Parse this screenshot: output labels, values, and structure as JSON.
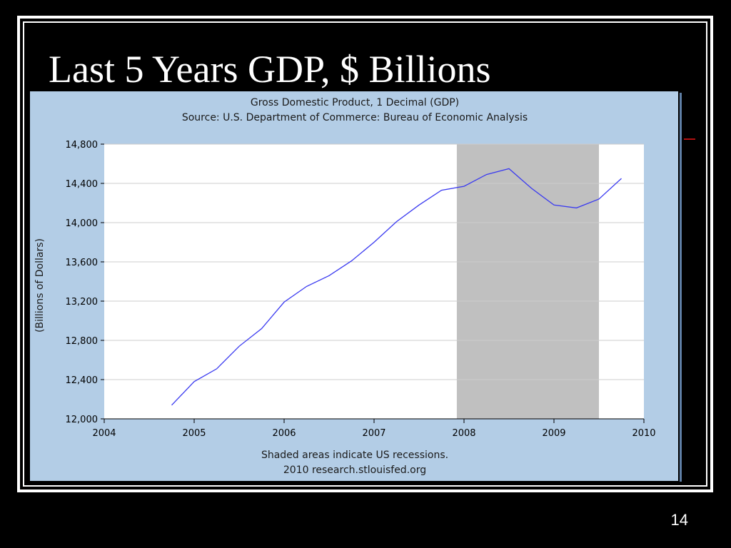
{
  "slide": {
    "title": "Last 5 Years GDP, $ Billions",
    "page_number": "14"
  },
  "colors": {
    "background": "#000000",
    "panel": "#b3cde6",
    "plot_area": "#ffffff",
    "recession_shade": "#c0c0c0",
    "line": "#3a3af0",
    "gridline": "#cccccc"
  },
  "chart_data": {
    "type": "line",
    "title": "Gross Domestic Product, 1 Decimal (GDP)",
    "subtitle": "Source: U.S. Department of Commerce: Bureau of Economic Analysis",
    "xlabel": "",
    "ylabel": "(Billions of Dollars)",
    "xlim": [
      2004,
      2010
    ],
    "ylim": [
      12000,
      14800
    ],
    "x_ticks": [
      2004,
      2005,
      2006,
      2007,
      2008,
      2009,
      2010
    ],
    "x_tick_labels": [
      "2004",
      "2005",
      "2006",
      "2007",
      "2008",
      "2009",
      "2010"
    ],
    "y_ticks": [
      12000,
      12400,
      12800,
      13200,
      13600,
      14000,
      14400,
      14800
    ],
    "y_tick_labels": [
      "12,000",
      "12,400",
      "12,800",
      "13,200",
      "13,600",
      "14,000",
      "14,400",
      "14,800"
    ],
    "grid": true,
    "recession_shading": [
      {
        "start": 2007.92,
        "end": 2009.5
      }
    ],
    "series": [
      {
        "x": [
          2004.75,
          2005.0,
          2005.25,
          2005.5,
          2005.75,
          2006.0,
          2006.25,
          2006.5,
          2006.75,
          2007.0,
          2007.25,
          2007.5,
          2007.75,
          2008.0,
          2008.25,
          2008.5,
          2008.75,
          2009.0,
          2009.25,
          2009.5,
          2009.75
        ],
        "values": [
          12140,
          12380,
          12510,
          12740,
          12920,
          13190,
          13350,
          13460,
          13610,
          13800,
          14010,
          14180,
          14330,
          14370,
          14490,
          14550,
          14350,
          14180,
          14150,
          14240,
          14450
        ]
      }
    ],
    "footnote": "Shaded areas indicate US recessions.",
    "source_line": "2010 research.stlouisfed.org"
  }
}
